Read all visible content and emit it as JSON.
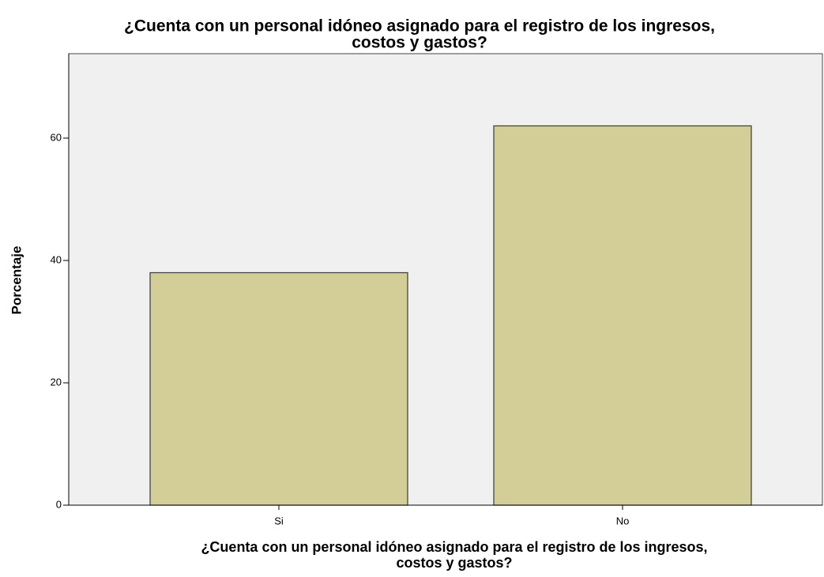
{
  "chart_data": {
    "type": "bar",
    "title": [
      "¿Cuenta con un personal idóneo asignado para el registro de los ingresos,",
      "costos y gastos?"
    ],
    "x_label": [
      "¿Cuenta con un personal idóneo asignado para el registro de los ingresos,",
      "costos y gastos?"
    ],
    "y_label": "Porcentaje",
    "categories": [
      "Si",
      "No"
    ],
    "values": [
      38,
      62
    ],
    "color": "#d3ce97",
    "ylim": [
      0,
      73.8
    ],
    "yticks": [
      0,
      20,
      40,
      60
    ],
    "grid": false
  }
}
